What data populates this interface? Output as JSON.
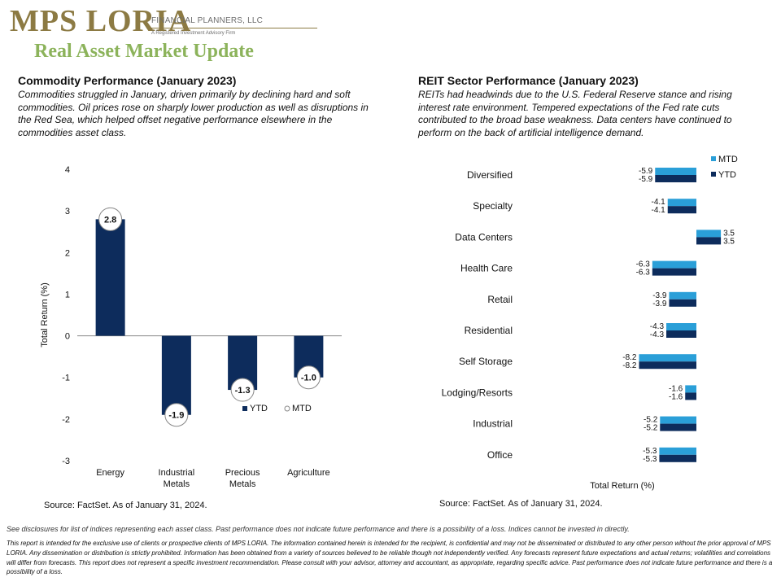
{
  "header": {
    "logo_text": "MPS LORIA",
    "logo_sub": "FINANCIAL PLANNERS, LLC",
    "logo_ria": "A Registered Investment Advisory Firm",
    "page_title": "Real Asset Market Update"
  },
  "left": {
    "title": "Commodity  Performance (January 2023)",
    "body": "Commodities struggled in January, driven primarily by declining hard and soft commodities. Oil prices rose on sharply lower production as well as disruptions in the Red Sea, which helped offset negative performance elsewhere in the commodities asset class.",
    "source": "Source: FactSet. As of January 31, 2024."
  },
  "right": {
    "title": "REIT Sector Performance (January 2023)",
    "body": "REITs had headwinds due to the U.S. Federal Reserve stance and rising interest rate environment. Tempered expectations of the Fed rate cuts contributed to the broad base weakness. Data centers have continued to perform on the back of artificial intelligence demand.",
    "source": "Source: FactSet. As of January 31, 2024."
  },
  "footer": {
    "disclosure_short": "See disclosures for list of indices representing each asset class. Past performance does not indicate future performance and there is a possibility of a loss. Indices cannot be invested in directly.",
    "disclosure_long": "This report is intended for the exclusive use of clients or prospective clients of MPS LORIA. The information contained herein is intended for the recipient, is confidential and may not be disseminated or distributed to any other person without the prior approval of MPS LORIA. Any dissemination or distribution is strictly prohibited. Information has been obtained from a variety of sources believed to be reliable though not independently verified. Any forecasts represent future expectations and actual returns; volatilities and correlations will differ from forecasts. This report does not represent a specific investment recommendation. Please consult with your advisor, attorney and accountant, as appropriate, regarding specific advice. Past performance does not indicate future performance and there is a possibility of a loss."
  },
  "colors": {
    "ytd": "#0d2c5c",
    "mtd": "#2a9fd8",
    "title_green": "#8cb35b",
    "logo_gold": "#8c7a43"
  },
  "chart_data": [
    {
      "type": "bar",
      "categories": [
        "Energy",
        "Industrial Metals",
        "Precious Metals",
        "Agriculture"
      ],
      "series": [
        {
          "name": "YTD",
          "values": [
            2.8,
            -1.9,
            -1.3,
            -1.0
          ]
        },
        {
          "name": "MTD",
          "values": [
            2.8,
            -1.9,
            -1.3,
            -1.0
          ]
        }
      ],
      "data_labels": [
        "2.8",
        "-1.9",
        "-1.3",
        "-1.0"
      ],
      "ylabel": "Total Return (%)",
      "ylim": [
        -3,
        4
      ],
      "yticks": [
        4,
        3,
        2,
        1,
        0,
        -1,
        -2,
        -3
      ],
      "grid": false,
      "legend": "center"
    },
    {
      "type": "bar",
      "orientation": "horizontal",
      "categories": [
        "Diversified",
        "Specialty",
        "Data Centers",
        "Health Care",
        "Retail",
        "Residential",
        "Self Storage",
        "Lodging/Resorts",
        "Industrial",
        "Office"
      ],
      "series": [
        {
          "name": "MTD",
          "values": [
            -5.9,
            -4.1,
            3.5,
            -6.3,
            -3.9,
            -4.3,
            -8.2,
            -1.6,
            -5.2,
            -5.3
          ]
        },
        {
          "name": "YTD",
          "values": [
            -5.9,
            -4.1,
            3.5,
            -6.3,
            -3.9,
            -4.3,
            -8.2,
            -1.6,
            -5.2,
            -5.3
          ]
        }
      ],
      "xlabel": "Total Return (%)",
      "xlim": [
        -8.2,
        3.5
      ],
      "grid": false,
      "legend": "top-right"
    }
  ]
}
